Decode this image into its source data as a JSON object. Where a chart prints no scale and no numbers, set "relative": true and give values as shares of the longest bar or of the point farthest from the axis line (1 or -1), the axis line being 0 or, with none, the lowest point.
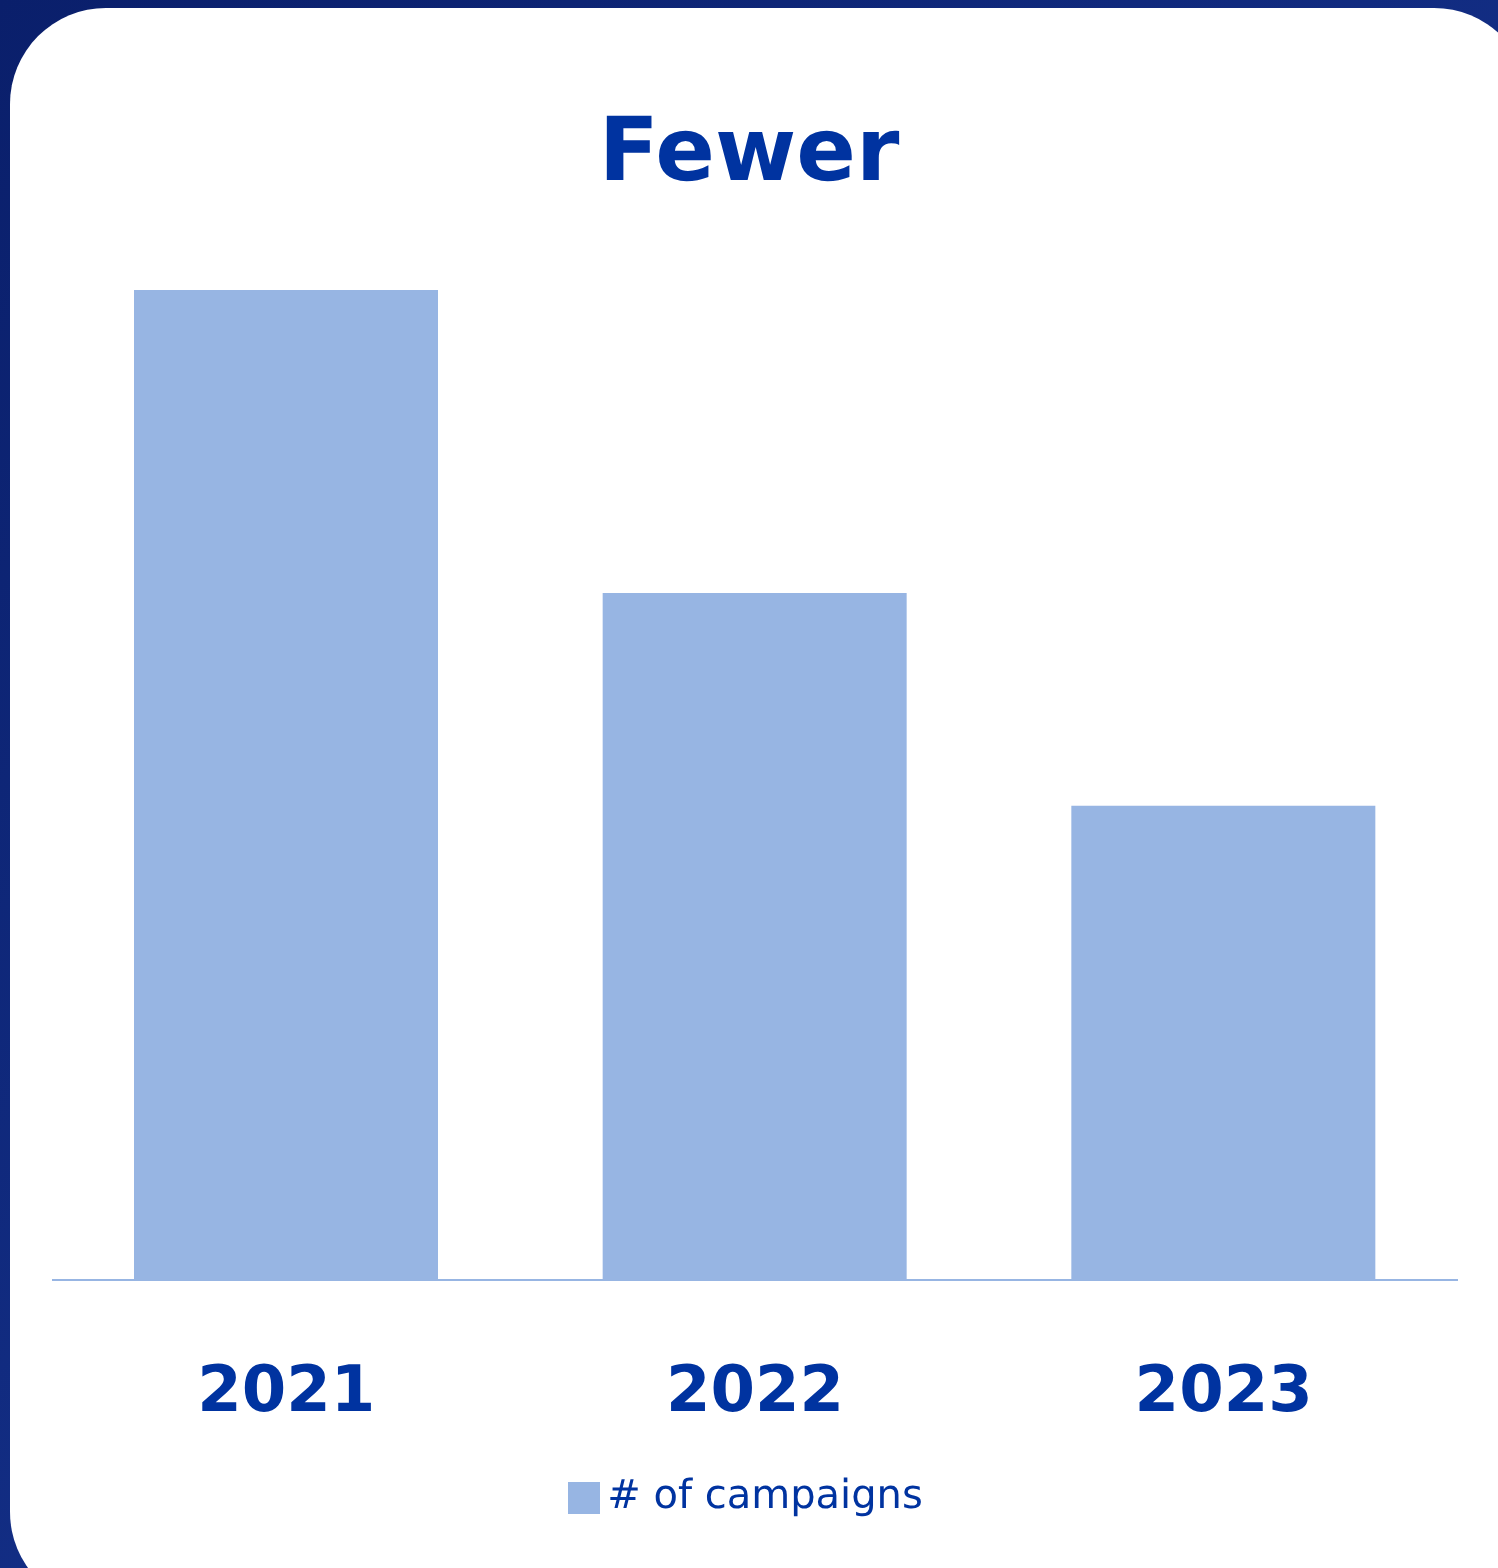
{
  "chart_data": {
    "type": "bar",
    "title": "Fewer",
    "categories": [
      "2021",
      "2022",
      "2023"
    ],
    "relative": true,
    "legend": "bottom",
    "series": [
      {
        "name": "# of campaigns",
        "color": "#97b5e3",
        "values": [
          1,
          0.694,
          0.479
        ]
      }
    ]
  }
}
